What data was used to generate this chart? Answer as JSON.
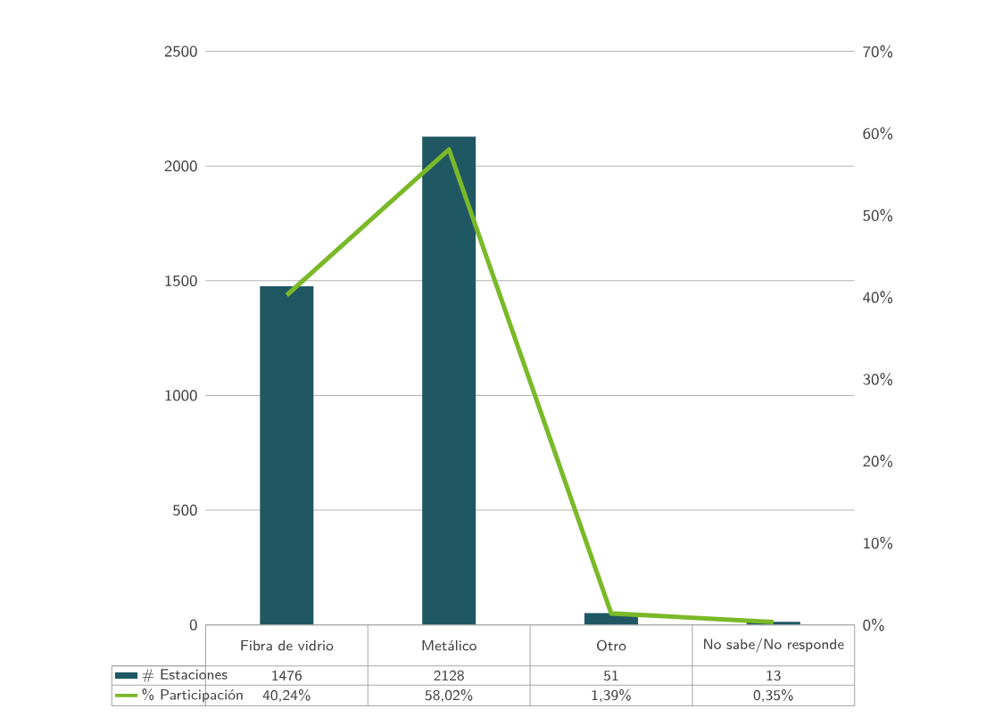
{
  "chart_data": {
    "type": "bar",
    "categories": [
      "Fibra de vidrio",
      "Metálico",
      "Otro",
      "No sabe/No responde"
    ],
    "series": [
      {
        "name": "# Estaciones",
        "color": "#1f5763",
        "values": [
          1476,
          2128,
          51,
          13
        ],
        "value_labels": [
          "1476",
          "2128",
          "51",
          "13"
        ]
      },
      {
        "name": "% Participación",
        "type": "line",
        "axis": "y2",
        "color": "#7ab929",
        "values": [
          40.24,
          58.02,
          1.39,
          0.35
        ],
        "value_labels": [
          "40,24%",
          "58,02%",
          "1,39%",
          "0,35%"
        ]
      }
    ],
    "ylim": [
      0,
      2500
    ],
    "yticks": [
      0,
      500,
      1000,
      1500,
      2000,
      2500
    ],
    "y2lim": [
      0,
      70
    ],
    "y2ticks": [
      {
        "value": 0,
        "label": "0%"
      },
      {
        "value": 10,
        "label": "10%"
      },
      {
        "value": 20,
        "label": "20%"
      },
      {
        "value": 30,
        "label": "30%"
      },
      {
        "value": 40,
        "label": "40%"
      },
      {
        "value": 50,
        "label": "50%"
      },
      {
        "value": 60,
        "label": "60%"
      },
      {
        "value": 70,
        "label": "70%"
      }
    ],
    "grid": "y",
    "legend": "bottom left",
    "marker": "none",
    "line_style": "solid"
  }
}
